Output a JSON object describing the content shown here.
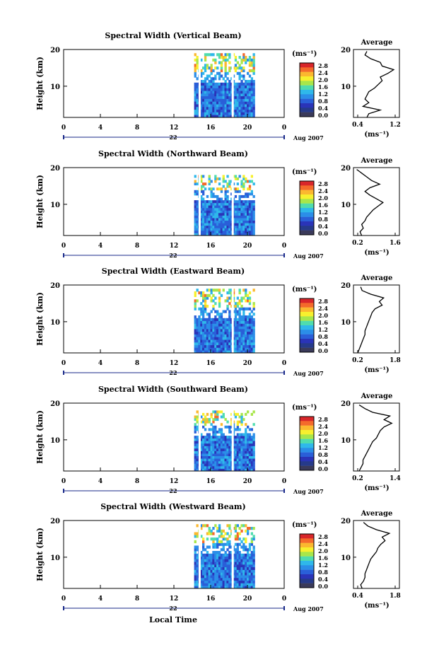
{
  "global": {
    "xlabel": "Local Time",
    "date_label": "Aug 2007",
    "day_label": "22",
    "colorbar_unit": "(ms⁻¹)",
    "colorbar_ticks": [
      "2.8",
      "2.4",
      "2.0",
      "1.6",
      "1.2",
      "0.8",
      "0.4",
      "0.0"
    ],
    "colorbar_colors": [
      "#d8262a",
      "#f46a2b",
      "#fbb82f",
      "#f7f02e",
      "#a8e64a",
      "#4fdcae",
      "#2fb8ea",
      "#2b8ee8",
      "#2a5fd8",
      "#2a34b8",
      "#263a8a",
      "#3a3a5a"
    ],
    "avg_title": "Average",
    "avg_xlabel": "(ms⁻¹)"
  },
  "chart_data": [
    {
      "type": "heatmap",
      "title": "Spectral Width (Vertical Beam)",
      "ylabel": "Height (km)",
      "x_ticks": [
        "0",
        "4",
        "8",
        "12",
        "16",
        "20",
        "0"
      ],
      "y_ticks": [
        "20",
        "10"
      ],
      "xlim": [
        0,
        24
      ],
      "ylim": [
        1.5,
        20
      ],
      "data_x_range": [
        14.2,
        20.8
      ],
      "data_top_km": 19,
      "gaps_hours": [
        14.8,
        18.4
      ],
      "average": {
        "type": "line",
        "x_ticks": [
          "0.4",
          "1.2"
        ],
        "xlim": [
          0.2,
          1.4
        ],
        "profile": [
          [
            1.5,
            0.55
          ],
          [
            2.5,
            0.6
          ],
          [
            3.5,
            0.9
          ],
          [
            4.5,
            0.45
          ],
          [
            5.5,
            0.6
          ],
          [
            6.5,
            0.5
          ],
          [
            7.5,
            0.55
          ],
          [
            8.5,
            0.6
          ],
          [
            9.5,
            0.75
          ],
          [
            10.5,
            0.85
          ],
          [
            11.5,
            0.95
          ],
          [
            12.5,
            0.9
          ],
          [
            13.5,
            1.1
          ],
          [
            14.5,
            1.25
          ],
          [
            15.5,
            0.95
          ],
          [
            16.5,
            0.9
          ],
          [
            17.5,
            0.65
          ],
          [
            18.5,
            0.5
          ],
          [
            19.5,
            0.55
          ]
        ]
      }
    },
    {
      "type": "heatmap",
      "title": "Spectral Width (Northward Beam)",
      "ylabel": "Height (km)",
      "x_ticks": [
        "0",
        "4",
        "8",
        "12",
        "16",
        "20",
        "0"
      ],
      "y_ticks": [
        "20",
        "10"
      ],
      "xlim": [
        0,
        24
      ],
      "ylim": [
        1.5,
        20
      ],
      "data_x_range": [
        14.2,
        20.8
      ],
      "data_top_km": 18,
      "gaps_hours": [
        14.8,
        18.4
      ],
      "average": {
        "type": "line",
        "x_ticks": [
          "0.2",
          "1.6"
        ],
        "xlim": [
          0.2,
          1.6
        ],
        "profile": [
          [
            1.5,
            0.45
          ],
          [
            2.5,
            0.4
          ],
          [
            3.5,
            0.5
          ],
          [
            4.5,
            0.45
          ],
          [
            5.5,
            0.55
          ],
          [
            6.5,
            0.6
          ],
          [
            7.5,
            0.7
          ],
          [
            8.5,
            0.8
          ],
          [
            9.5,
            0.95
          ],
          [
            10.5,
            1.1
          ],
          [
            11.5,
            0.9
          ],
          [
            12.5,
            0.7
          ],
          [
            13.5,
            0.55
          ],
          [
            14.5,
            0.7
          ],
          [
            15.5,
            1.0
          ],
          [
            16.5,
            0.75
          ],
          [
            17.5,
            0.6
          ],
          [
            18.5,
            0.45
          ],
          [
            19.5,
            0.3
          ]
        ]
      }
    },
    {
      "type": "heatmap",
      "title": "Spectral Width (Eastward Beam)",
      "ylabel": "Height (km)",
      "x_ticks": [
        "0",
        "4",
        "8",
        "12",
        "16",
        "20",
        "0"
      ],
      "y_ticks": [
        "20",
        "10"
      ],
      "xlim": [
        0,
        24
      ],
      "ylim": [
        1.5,
        20
      ],
      "data_x_range": [
        14.2,
        20.8
      ],
      "data_top_km": 19,
      "gaps_hours": [
        18.4
      ],
      "average": {
        "type": "line",
        "x_ticks": [
          "0.2",
          "1.8"
        ],
        "xlim": [
          0.2,
          1.8
        ],
        "profile": [
          [
            1.5,
            0.35
          ],
          [
            2.5,
            0.4
          ],
          [
            3.5,
            0.45
          ],
          [
            4.5,
            0.5
          ],
          [
            5.5,
            0.55
          ],
          [
            6.5,
            0.6
          ],
          [
            7.5,
            0.6
          ],
          [
            8.5,
            0.65
          ],
          [
            9.5,
            0.7
          ],
          [
            10.5,
            0.75
          ],
          [
            11.5,
            0.8
          ],
          [
            12.5,
            0.85
          ],
          [
            13.5,
            0.95
          ],
          [
            14.5,
            1.2
          ],
          [
            15.5,
            1.1
          ],
          [
            16.5,
            1.25
          ],
          [
            17.5,
            0.8
          ],
          [
            18.5,
            0.5
          ],
          [
            19.5,
            0.45
          ]
        ]
      }
    },
    {
      "type": "heatmap",
      "title": "Spectral Width (Southward Beam)",
      "ylabel": "Height (km)",
      "x_ticks": [
        "0",
        "4",
        "8",
        "12",
        "16",
        "20",
        "0"
      ],
      "y_ticks": [
        "20",
        "10"
      ],
      "xlim": [
        0,
        24
      ],
      "ylim": [
        1.5,
        20
      ],
      "data_x_range": [
        14.2,
        20.8
      ],
      "data_top_km": 18,
      "gaps_hours": [
        14.8,
        18.4
      ],
      "average": {
        "type": "line",
        "x_ticks": [
          "0.2",
          "1.4"
        ],
        "xlim": [
          0.2,
          1.4
        ],
        "profile": [
          [
            1.5,
            0.35
          ],
          [
            2.5,
            0.4
          ],
          [
            3.5,
            0.45
          ],
          [
            4.5,
            0.45
          ],
          [
            5.5,
            0.5
          ],
          [
            6.5,
            0.55
          ],
          [
            7.5,
            0.6
          ],
          [
            8.5,
            0.65
          ],
          [
            9.5,
            0.7
          ],
          [
            10.5,
            0.8
          ],
          [
            11.5,
            0.85
          ],
          [
            12.5,
            0.9
          ],
          [
            13.5,
            1.0
          ],
          [
            14.5,
            1.2
          ],
          [
            15.5,
            1.0
          ],
          [
            16.5,
            1.15
          ],
          [
            17.5,
            0.7
          ],
          [
            18.5,
            0.5
          ],
          [
            19.5,
            0.35
          ]
        ]
      }
    },
    {
      "type": "heatmap",
      "title": "Spectral Width (Westward Beam)",
      "ylabel": "Height (km)",
      "x_ticks": [
        "0",
        "4",
        "8",
        "12",
        "16",
        "20",
        "0"
      ],
      "y_ticks": [
        "20",
        "10"
      ],
      "xlim": [
        0,
        24
      ],
      "ylim": [
        1.5,
        20
      ],
      "data_x_range": [
        14.2,
        20.8
      ],
      "data_top_km": 19,
      "gaps_hours": [
        14.8,
        18.4
      ],
      "average": {
        "type": "line",
        "x_ticks": [
          "0.4",
          "1.8"
        ],
        "xlim": [
          0.2,
          1.8
        ],
        "profile": [
          [
            1.5,
            0.5
          ],
          [
            2.5,
            0.45
          ],
          [
            3.5,
            0.55
          ],
          [
            4.5,
            0.6
          ],
          [
            5.5,
            0.6
          ],
          [
            6.5,
            0.65
          ],
          [
            7.5,
            0.7
          ],
          [
            8.5,
            0.75
          ],
          [
            9.5,
            0.8
          ],
          [
            10.5,
            0.9
          ],
          [
            11.5,
            1.0
          ],
          [
            12.5,
            1.05
          ],
          [
            13.5,
            1.15
          ],
          [
            14.5,
            1.3
          ],
          [
            15.5,
            1.2
          ],
          [
            16.5,
            1.45
          ],
          [
            17.5,
            1.0
          ],
          [
            18.5,
            0.7
          ],
          [
            19.5,
            0.55
          ]
        ]
      }
    }
  ]
}
